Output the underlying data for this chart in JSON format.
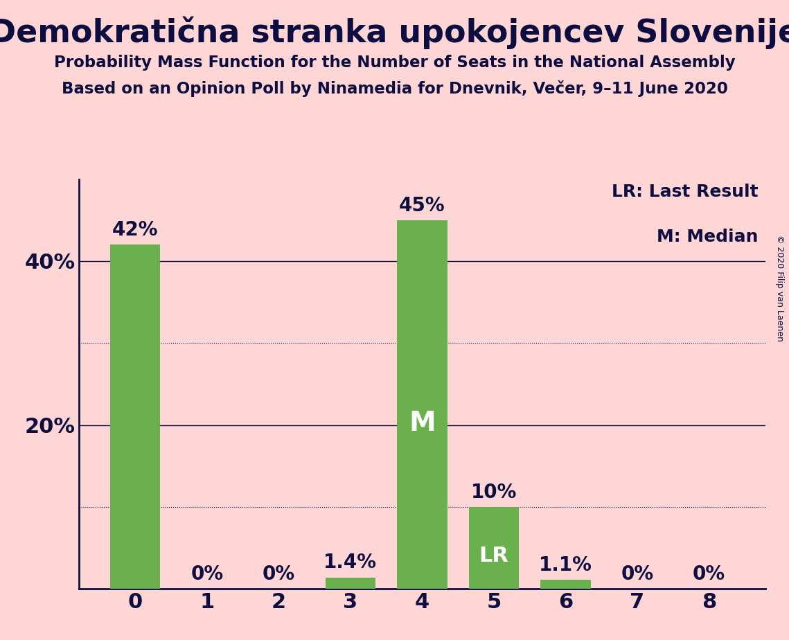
{
  "title": "Demokratična stranka upokojencev Slovenije",
  "subtitle1": "Probability Mass Function for the Number of Seats in the National Assembly",
  "subtitle2": "Based on an Opinion Poll by Ninamedia for Dnevnik, Večer, 9–11 June 2020",
  "x_labels": [
    0,
    1,
    2,
    3,
    4,
    5,
    6,
    7,
    8
  ],
  "values": [
    0.42,
    0.0,
    0.0,
    0.014,
    0.45,
    0.1,
    0.011,
    0.0,
    0.0
  ],
  "bar_labels": [
    "42%",
    "0%",
    "0%",
    "1.4%",
    "45%",
    "10%",
    "1.1%",
    "0%",
    "0%"
  ],
  "bar_color": "#6ab04c",
  "background_color": "#ffd6d6",
  "text_color": "#0d0d40",
  "median_bar": 4,
  "lr_bar": 5,
  "legend_lr": "LR: Last Result",
  "legend_m": "M: Median",
  "solid_gridlines": [
    0.2,
    0.4
  ],
  "dotted_gridlines": [
    0.1,
    0.3
  ],
  "ytick_positions": [
    0.2,
    0.4
  ],
  "ytick_labels": [
    "20%",
    "40%"
  ],
  "ylim": [
    0,
    0.5
  ],
  "copyright": "© 2020 Filip van Laenen"
}
